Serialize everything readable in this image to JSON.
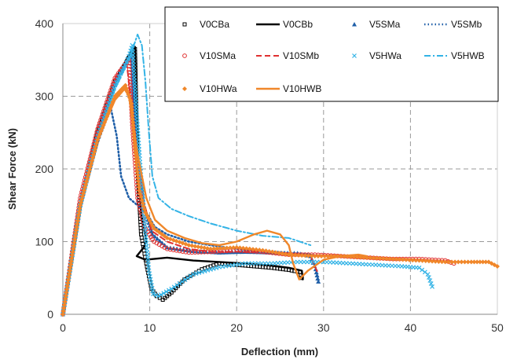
{
  "chart_data": {
    "type": "line",
    "title": "",
    "xlabel": "Deflection (mm)",
    "ylabel": "Shear Force (kN)",
    "xlim": [
      0,
      50
    ],
    "ylim": [
      0,
      400
    ],
    "xticks": [
      "0",
      "10",
      "20",
      "30",
      "40",
      "50"
    ],
    "yticks": [
      "0",
      "100",
      "200",
      "300",
      "400"
    ],
    "grid": "dashed",
    "legend_position": "top-right",
    "series": [
      {
        "name": "V0CBa",
        "color": "#000000",
        "style": "marker-square",
        "x": [
          0,
          2,
          4,
          6,
          7.5,
          8.3,
          8.6,
          9.0,
          9.6,
          10.2,
          10.8,
          11.5,
          12.5,
          14,
          16,
          18,
          20,
          22,
          24,
          26,
          27.3,
          27.5
        ],
        "y": [
          0,
          150,
          250,
          320,
          350,
          365,
          200,
          110,
          70,
          35,
          25,
          20,
          30,
          48,
          62,
          70,
          68,
          66,
          64,
          61,
          58,
          50
        ]
      },
      {
        "name": "V0CBb",
        "color": "#000000",
        "style": "solid",
        "x": [
          0,
          2,
          4,
          6,
          7.5,
          8.3,
          8.6,
          9.0,
          9.6,
          9.3,
          8.5,
          9.5,
          12,
          15,
          18,
          21,
          24,
          26,
          27.5,
          27.6
        ],
        "y": [
          0,
          150,
          250,
          320,
          355,
          368,
          210,
          140,
          100,
          92,
          80,
          75,
          78,
          74,
          72,
          70,
          67,
          64,
          60,
          48
        ]
      },
      {
        "name": "V5SMa",
        "color": "#1f5fa8",
        "style": "marker-triangle",
        "x": [
          0,
          2,
          4,
          6,
          7.5,
          7.9,
          8.1,
          8.6,
          9.3,
          10.3,
          12,
          15,
          18,
          21,
          24,
          27,
          28.5,
          29.1,
          29.4
        ],
        "y": [
          0,
          150,
          245,
          320,
          350,
          358,
          300,
          220,
          150,
          110,
          92,
          87,
          85,
          86,
          85,
          84,
          80,
          62,
          45
        ]
      },
      {
        "name": "V5SMb",
        "color": "#1f5fa8",
        "style": "dotted",
        "x": [
          0,
          2,
          4,
          5.5,
          6.2,
          6.7,
          7.6,
          8.6,
          9.6,
          10.6,
          12,
          14.5,
          17,
          20,
          23,
          26,
          28,
          29.4
        ],
        "y": [
          0,
          145,
          235,
          285,
          245,
          190,
          160,
          150,
          140,
          120,
          110,
          100,
          95,
          90,
          86,
          84,
          83,
          80
        ]
      },
      {
        "name": "V10SMa",
        "color": "#e03030",
        "style": "marker-circle",
        "x": [
          0,
          2,
          4,
          6,
          7.2,
          7.6,
          8.0,
          8.6,
          9.4,
          10.5,
          12,
          14.5,
          17,
          20,
          23,
          26,
          29,
          32,
          35,
          38,
          41,
          44,
          45
        ],
        "y": [
          0,
          160,
          255,
          325,
          345,
          350,
          260,
          160,
          120,
          100,
          90,
          85,
          86,
          88,
          86,
          82,
          82,
          80,
          78,
          76,
          76,
          74,
          70
        ]
      },
      {
        "name": "V10SMb",
        "color": "#e03030",
        "style": "dashed",
        "x": [
          0,
          2,
          4,
          6,
          7.0,
          7.4,
          8.2,
          9.2,
          10.2,
          12,
          14.5,
          17,
          20,
          23,
          26,
          28.5,
          29.3
        ],
        "y": [
          0,
          160,
          255,
          325,
          345,
          340,
          260,
          160,
          115,
          100,
          90,
          86,
          86,
          86,
          84,
          80,
          58
        ]
      },
      {
        "name": "V5HWa",
        "color": "#33b3e6",
        "style": "marker-x",
        "x": [
          0,
          2,
          4,
          6,
          7.6,
          8.0,
          8.2,
          8.7,
          9.3,
          9.9,
          10.4,
          11,
          12.5,
          15,
          18,
          21,
          24,
          27,
          30,
          33,
          36,
          39,
          41,
          42,
          42.5
        ],
        "y": [
          0,
          150,
          245,
          315,
          355,
          370,
          330,
          240,
          140,
          60,
          28,
          25,
          35,
          55,
          65,
          70,
          70,
          72,
          72,
          70,
          68,
          66,
          64,
          55,
          38
        ]
      },
      {
        "name": "V5HWB",
        "color": "#33b3e6",
        "style": "dash-dot",
        "x": [
          0,
          2,
          4,
          6,
          7.6,
          8.6,
          9.1,
          9.5,
          9.9,
          10.3,
          11,
          12.5,
          14.5,
          17,
          20,
          23,
          26,
          28.5
        ],
        "y": [
          0,
          145,
          240,
          310,
          350,
          385,
          370,
          320,
          250,
          190,
          160,
          145,
          135,
          125,
          115,
          108,
          105,
          95
        ]
      },
      {
        "name": "V10HWa",
        "color": "#f0872a",
        "style": "marker-diamond",
        "x": [
          0,
          2,
          4,
          6,
          7.2,
          7.9,
          8.3,
          8.8,
          9.5,
          10.5,
          12,
          14.5,
          17,
          20,
          23,
          26,
          29,
          32,
          35,
          38,
          41,
          44,
          47,
          49,
          50
        ],
        "y": [
          0,
          150,
          240,
          300,
          315,
          290,
          230,
          170,
          140,
          118,
          105,
          95,
          90,
          92,
          88,
          82,
          80,
          80,
          78,
          76,
          74,
          72,
          72,
          72,
          66
        ]
      },
      {
        "name": "V10HWB",
        "color": "#f0872a",
        "style": "solid",
        "x": [
          0,
          2,
          4,
          6,
          7.1,
          7.6,
          8.6,
          9.6,
          10.6,
          12,
          14,
          16,
          18,
          20,
          22,
          23.5,
          25,
          26,
          26.5,
          27.2,
          28.2,
          30,
          32,
          34,
          35
        ],
        "y": [
          0,
          150,
          240,
          295,
          310,
          300,
          220,
          160,
          130,
          115,
          105,
          98,
          95,
          100,
          110,
          115,
          110,
          95,
          70,
          48,
          60,
          75,
          80,
          82,
          80
        ]
      }
    ]
  }
}
